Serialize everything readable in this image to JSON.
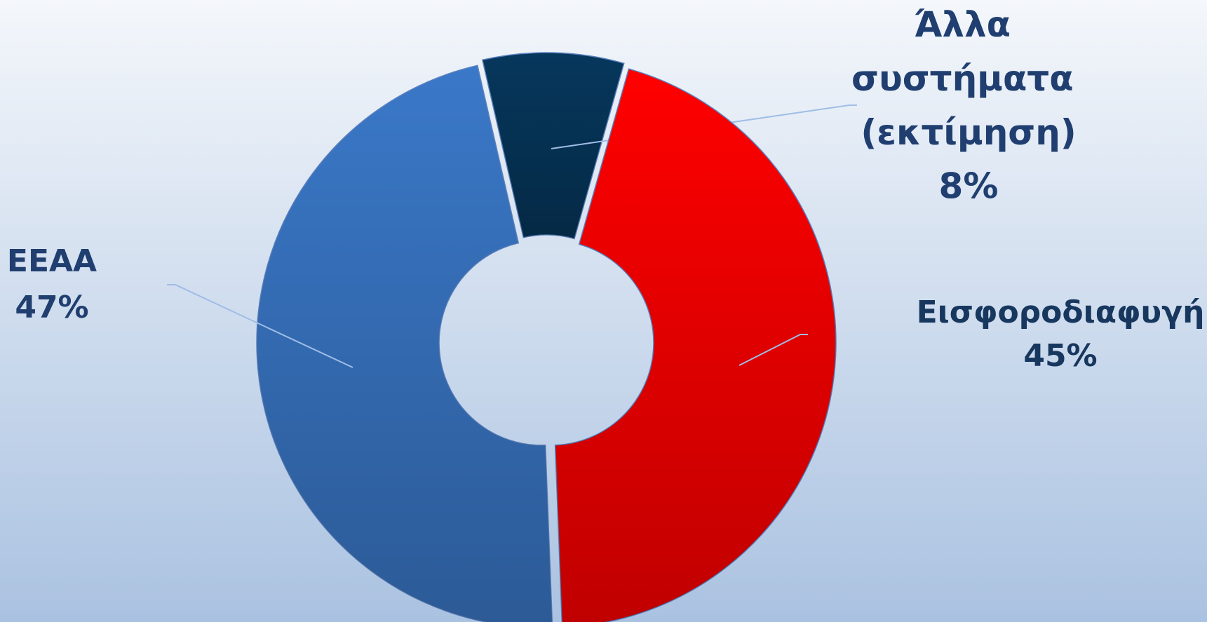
{
  "chart_data": {
    "type": "pie",
    "hole": true,
    "categories": [
      "Άλλα συστήματα (εκτίμηση)",
      "Εισφοροδιαφυγή",
      "ΕΕΑΑ"
    ],
    "values": [
      8,
      45,
      47
    ],
    "value_labels": [
      "8%",
      "45%",
      "47%"
    ],
    "colors": [
      "#06375c",
      "#ff0000",
      "#3a78c8"
    ]
  }
}
